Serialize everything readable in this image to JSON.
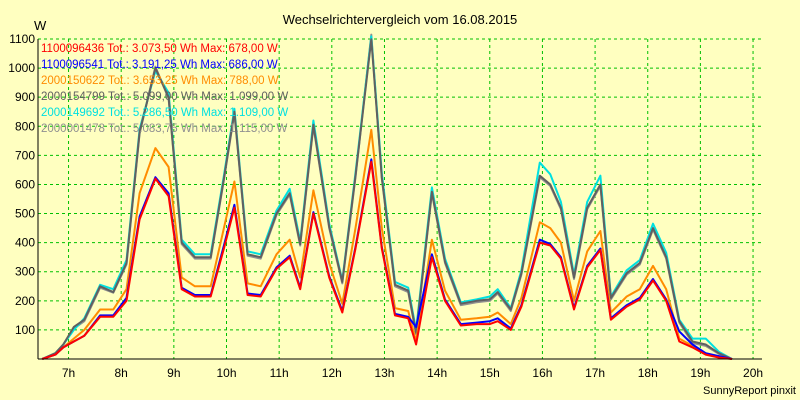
{
  "chart_data": {
    "type": "line",
    "title": "Wechselrichtervergleich vom 16.08.2015",
    "ylabel": "W",
    "xlabel": "",
    "footer": "SunnyReport pinxit",
    "ylim": [
      0,
      1100
    ],
    "xlim": [
      6.42,
      20.17
    ],
    "grid": true,
    "x_ticks": [
      7,
      8,
      9,
      10,
      11,
      12,
      13,
      14,
      15,
      16,
      17,
      18,
      19,
      20
    ],
    "x_tick_labels": [
      "7h",
      "8h",
      "9h",
      "10h",
      "11h",
      "12h",
      "13h",
      "14h",
      "15h",
      "16h",
      "17h",
      "18h",
      "19h",
      "20h"
    ],
    "y_ticks": [
      100,
      200,
      300,
      400,
      500,
      600,
      700,
      800,
      900,
      1000,
      1100
    ],
    "y_tick_labels": [
      "100",
      "200",
      "300",
      "400",
      "500",
      "600",
      "700",
      "800",
      "900",
      "1000",
      "1100"
    ],
    "x": [
      6.5,
      6.75,
      6.9,
      7.1,
      7.3,
      7.6,
      7.85,
      8.1,
      8.35,
      8.65,
      8.9,
      9.15,
      9.4,
      9.7,
      9.95,
      10.15,
      10.4,
      10.65,
      10.95,
      11.2,
      11.4,
      11.65,
      11.95,
      12.2,
      12.45,
      12.75,
      12.95,
      13.2,
      13.45,
      13.6,
      13.9,
      14.15,
      14.45,
      14.75,
      15.0,
      15.15,
      15.4,
      15.6,
      15.95,
      16.15,
      16.35,
      16.6,
      16.85,
      17.1,
      17.3,
      17.6,
      17.85,
      18.1,
      18.35,
      18.6,
      18.85,
      19.1,
      19.35,
      19.6
    ],
    "series": [
      {
        "name": "1100096436",
        "legend": "1100096436 Tot.: 3.073,50 Wh Max: 678,00 W",
        "color": "#ff0000",
        "values": [
          0,
          15,
          40,
          60,
          80,
          145,
          145,
          200,
          480,
          620,
          560,
          240,
          215,
          215,
          380,
          520,
          220,
          215,
          310,
          350,
          240,
          500,
          280,
          160,
          380,
          678,
          380,
          150,
          140,
          50,
          350,
          200,
          115,
          120,
          120,
          130,
          100,
          180,
          400,
          390,
          345,
          170,
          315,
          375,
          135,
          180,
          205,
          270,
          200,
          60,
          40,
          15,
          5,
          0
        ]
      },
      {
        "name": "1100096541",
        "legend": "1100096541 Tot.: 3.191,25 Wh Max: 686,00 W",
        "color": "#0000ff",
        "values": [
          0,
          15,
          40,
          60,
          80,
          150,
          150,
          210,
          490,
          625,
          570,
          245,
          220,
          220,
          390,
          530,
          225,
          220,
          315,
          355,
          245,
          505,
          285,
          165,
          385,
          686,
          385,
          155,
          145,
          110,
          360,
          205,
          120,
          125,
          130,
          140,
          105,
          185,
          410,
          395,
          350,
          175,
          320,
          380,
          140,
          185,
          210,
          275,
          205,
          95,
          50,
          20,
          10,
          0
        ]
      },
      {
        "name": "2000150622",
        "legend": "2000150622 Tot.: 3.653,25 Wh Max: 788,00 W",
        "color": "#ff8c00",
        "values": [
          0,
          15,
          40,
          70,
          100,
          170,
          170,
          240,
          570,
          725,
          660,
          280,
          250,
          250,
          450,
          610,
          260,
          250,
          360,
          410,
          280,
          580,
          330,
          190,
          450,
          788,
          450,
          175,
          165,
          60,
          410,
          235,
          135,
          140,
          145,
          160,
          120,
          210,
          470,
          450,
          400,
          200,
          370,
          440,
          160,
          215,
          240,
          320,
          240,
          70,
          45,
          20,
          8,
          0
        ]
      },
      {
        "name": "2000154799",
        "legend": "2000154799 Tot.: 5.099,00 Wh Max: 1.099,00 W",
        "color": "#606060",
        "values": [
          0,
          20,
          50,
          110,
          135,
          250,
          230,
          330,
          780,
          1000,
          900,
          400,
          350,
          350,
          620,
          850,
          360,
          350,
          500,
          570,
          395,
          805,
          455,
          265,
          630,
          1099,
          625,
          255,
          235,
          90,
          575,
          335,
          190,
          200,
          205,
          230,
          170,
          295,
          630,
          600,
          520,
          280,
          520,
          600,
          210,
          295,
          330,
          450,
          350,
          130,
          60,
          50,
          20,
          0
        ]
      },
      {
        "name": "2000149692",
        "legend": "2000149692 Tot.: 5.286,50 Wh Max: 1.109,00 W",
        "color": "#00e0e0",
        "values": [
          0,
          20,
          50,
          100,
          140,
          255,
          240,
          340,
          790,
          990,
          915,
          410,
          360,
          360,
          630,
          860,
          370,
          360,
          510,
          585,
          405,
          820,
          465,
          270,
          640,
          1109,
          640,
          265,
          245,
          100,
          590,
          345,
          195,
          205,
          215,
          240,
          175,
          305,
          675,
          635,
          540,
          290,
          540,
          630,
          215,
          305,
          340,
          465,
          365,
          135,
          70,
          70,
          25,
          0
        ]
      },
      {
        "name": "2000001478",
        "legend": "2000001478 Tot.: 5.083,75 Wh Max: 1.115,00 W",
        "color": "#909090",
        "values": [
          0,
          20,
          50,
          105,
          130,
          245,
          228,
          325,
          775,
          1005,
          895,
          395,
          345,
          345,
          615,
          845,
          355,
          345,
          495,
          565,
          390,
          800,
          450,
          260,
          625,
          1115,
          620,
          250,
          230,
          85,
          570,
          330,
          185,
          195,
          200,
          225,
          165,
          290,
          625,
          595,
          515,
          275,
          515,
          595,
          205,
          290,
          325,
          445,
          345,
          125,
          55,
          45,
          18,
          0
        ]
      }
    ]
  }
}
